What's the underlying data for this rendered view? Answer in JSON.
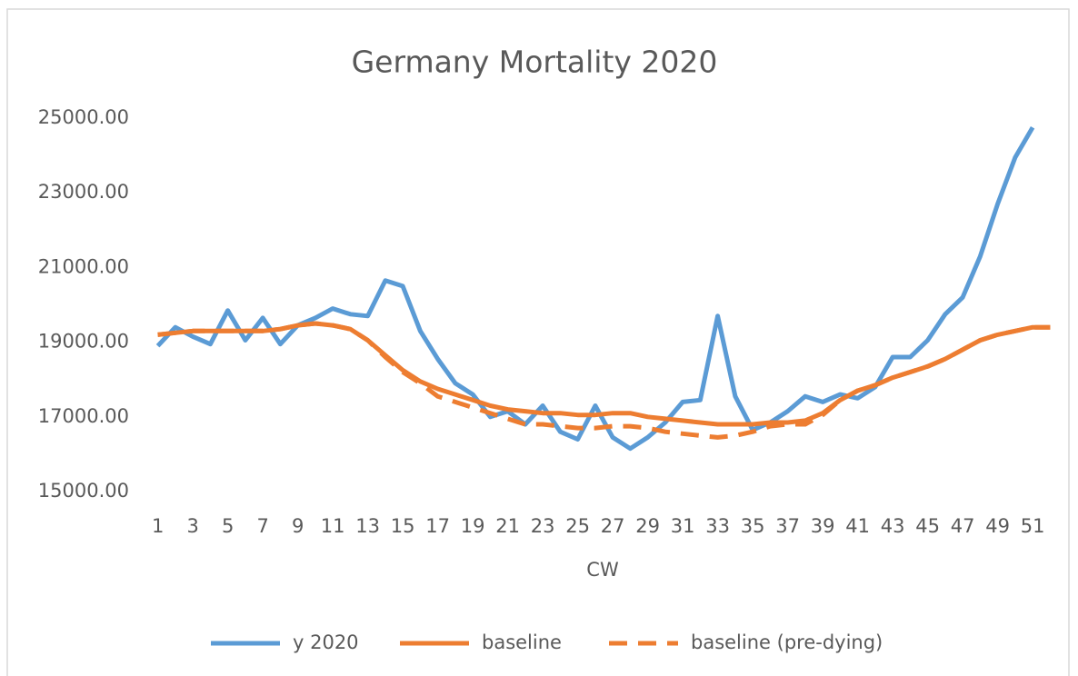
{
  "chart_data": {
    "type": "line",
    "title": "Germany Mortality 2020",
    "x_label": "CW",
    "x": [
      1,
      2,
      3,
      4,
      5,
      6,
      7,
      8,
      9,
      10,
      11,
      12,
      13,
      14,
      15,
      16,
      17,
      18,
      19,
      20,
      21,
      22,
      23,
      24,
      25,
      26,
      27,
      28,
      29,
      30,
      31,
      32,
      33,
      34,
      35,
      36,
      37,
      38,
      39,
      40,
      41,
      42,
      43,
      44,
      45,
      46,
      47,
      48,
      49,
      50,
      51,
      52
    ],
    "xlim": [
      0.5,
      52.5
    ],
    "xticks": [
      1,
      3,
      5,
      7,
      9,
      11,
      13,
      15,
      17,
      19,
      21,
      23,
      25,
      27,
      29,
      31,
      33,
      35,
      37,
      39,
      41,
      43,
      45,
      47,
      49,
      51
    ],
    "ylim": [
      15000,
      25000
    ],
    "yticks": [
      {
        "value": 15000,
        "label": "15000.00"
      },
      {
        "value": 17000,
        "label": "17000.00"
      },
      {
        "value": 19000,
        "label": "19000.00"
      },
      {
        "value": 21000,
        "label": "21000.00"
      },
      {
        "value": 23000,
        "label": "23000.00"
      },
      {
        "value": 25000,
        "label": "25000.00"
      }
    ],
    "legend": "bottom",
    "series": [
      {
        "name": "y 2020",
        "color": "#5b9bd5",
        "style": "solid",
        "values": [
          18900,
          19400,
          19150,
          18950,
          19850,
          19050,
          19650,
          18950,
          19450,
          19650,
          19900,
          19750,
          19700,
          20650,
          20500,
          19300,
          18550,
          17900,
          17600,
          17000,
          17150,
          16800,
          17300,
          16600,
          16400,
          17300,
          16450,
          16150,
          16450,
          16850,
          17400,
          17450,
          19700,
          17550,
          16650,
          16850,
          17150,
          17550,
          17400,
          17600,
          17500,
          17800,
          18600,
          18600,
          19050,
          19750,
          20200,
          21300,
          22700,
          23950,
          24750,
          null
        ]
      },
      {
        "name": "baseline",
        "color": "#ed7d31",
        "style": "solid",
        "values": [
          19200,
          19250,
          19300,
          19300,
          19300,
          19300,
          19300,
          19350,
          19450,
          19500,
          19450,
          19350,
          19050,
          18650,
          18250,
          17950,
          17750,
          17600,
          17450,
          17300,
          17200,
          17150,
          17100,
          17100,
          17050,
          17050,
          17100,
          17100,
          17000,
          16950,
          16900,
          16850,
          16800,
          16800,
          16800,
          16850,
          16850,
          16900,
          17100,
          17450,
          17700,
          17850,
          18050,
          18200,
          18350,
          18550,
          18800,
          19050,
          19200,
          19300,
          19400,
          19400
        ]
      },
      {
        "name": "baseline (pre-dying)",
        "color": "#ed7d31",
        "style": "dashed",
        "values": [
          19200,
          19250,
          19300,
          19300,
          19300,
          19300,
          19300,
          19350,
          19450,
          19500,
          19450,
          19350,
          19050,
          18600,
          18200,
          17900,
          17550,
          17400,
          17250,
          17100,
          16950,
          16800,
          16800,
          16750,
          16700,
          16700,
          16750,
          16750,
          16700,
          16600,
          16550,
          16500,
          16450,
          16500,
          16600,
          16750,
          16800,
          16800,
          17050,
          17450,
          17700,
          17850,
          18050,
          18200,
          18350,
          18550,
          18800,
          19050,
          19200,
          19300,
          19400,
          19400
        ]
      }
    ]
  }
}
